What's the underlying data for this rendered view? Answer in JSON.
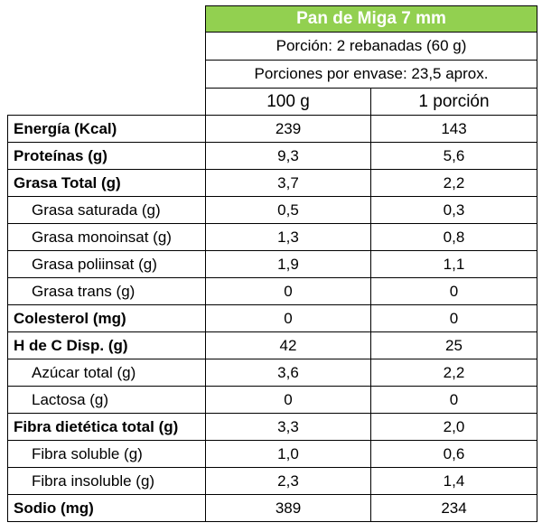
{
  "product": {
    "title": "Pan de Miga 7 mm",
    "serving": "Porción: 2 rebanadas (60 g)",
    "servings_per_package": "Porciones por  envase:  23,5 aprox."
  },
  "columns": {
    "per_100g": "100 g",
    "per_portion": "1 porción"
  },
  "rows": [
    {
      "label": "Energía (Kcal)",
      "per_100g": "239",
      "per_portion": "143",
      "bold": true
    },
    {
      "label": "Proteínas (g)",
      "per_100g": "9,3",
      "per_portion": "5,6",
      "bold": true
    },
    {
      "label": "Grasa Total (g)",
      "per_100g": "3,7",
      "per_portion": "2,2",
      "bold": true
    },
    {
      "label": "Grasa saturada (g)",
      "per_100g": "0,5",
      "per_portion": "0,3",
      "bold": false
    },
    {
      "label": "Grasa monoinsat (g)",
      "per_100g": "1,3",
      "per_portion": "0,8",
      "bold": false
    },
    {
      "label": "Grasa poliinsat (g)",
      "per_100g": "1,9",
      "per_portion": "1,1",
      "bold": false
    },
    {
      "label": "Grasa trans (g)",
      "per_100g": "0",
      "per_portion": "0",
      "bold": false
    },
    {
      "label": "Colesterol (mg)",
      "per_100g": "0",
      "per_portion": "0",
      "bold": true
    },
    {
      "label": "H de C Disp. (g)",
      "per_100g": "42",
      "per_portion": "25",
      "bold": true
    },
    {
      "label": "Azúcar total (g)",
      "per_100g": "3,6",
      "per_portion": "2,2",
      "bold": false
    },
    {
      "label": "Lactosa (g)",
      "per_100g": "0",
      "per_portion": "0",
      "bold": false
    },
    {
      "label": "Fibra dietética total (g)",
      "per_100g": "3,3",
      "per_portion": "2,0",
      "bold": true
    },
    {
      "label": "Fibra soluble (g)",
      "per_100g": "1,0",
      "per_portion": "0,6",
      "bold": false
    },
    {
      "label": "Fibra insoluble (g)",
      "per_100g": "2,3",
      "per_portion": "1,4",
      "bold": false
    },
    {
      "label": "Sodio (mg)",
      "per_100g": "389",
      "per_portion": "234",
      "bold": true
    }
  ],
  "colors": {
    "title_background": "#92d050",
    "title_text": "#ffffff"
  }
}
